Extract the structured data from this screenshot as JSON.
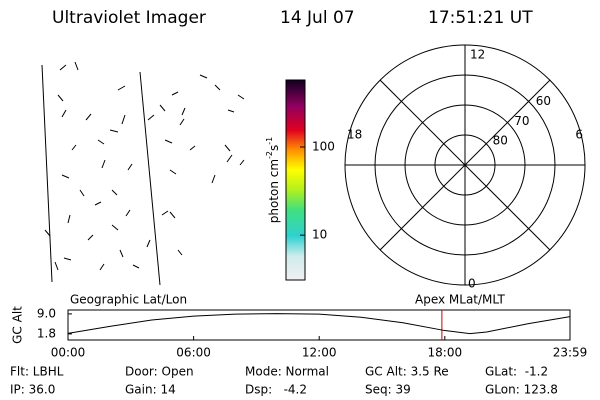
{
  "header": {
    "title": "Ultraviolet Imager",
    "date": "14 Jul 07",
    "time": "17:51:21 UT"
  },
  "colorbar": {
    "label": {
      "base": "photon cm",
      "exp1": "-2",
      "unit2": "s",
      "exp2": "-1"
    },
    "lim": [
      3.1,
      575
    ],
    "log": true,
    "ticks": [
      10,
      100
    ]
  },
  "polar": {
    "mlt_labels": [
      "12",
      "6",
      "0",
      "18"
    ],
    "lat_rings": [
      60,
      70,
      80
    ]
  },
  "chart_data": {
    "type": "line",
    "left_label": "Geographic Lat/Lon",
    "right_label": "Apex MLat/MLT",
    "ylabel": "GC Alt",
    "x": [
      0,
      2,
      4,
      6,
      8,
      10,
      12,
      14,
      16,
      18,
      19.2,
      20,
      22,
      23.98
    ],
    "values": [
      2.0,
      4.5,
      6.8,
      8.2,
      8.9,
      9.1,
      8.9,
      7.8,
      5.8,
      3.0,
      1.9,
      2.5,
      5.5,
      8.0
    ],
    "color": "#000000",
    "marker": 17.86,
    "marker_color": "#cc0000",
    "xlim": [
      0,
      23.98
    ],
    "xticks": [
      {
        "value": 0,
        "label": "00:00"
      },
      {
        "value": 6,
        "label": "06:00"
      },
      {
        "value": 12,
        "label": "12:00"
      },
      {
        "value": 18,
        "label": "18:00"
      },
      {
        "value": 23.98,
        "label": "23:59"
      }
    ],
    "ylim": [
      -0.4,
      10.4
    ],
    "yticks": [
      {
        "value": 9,
        "label": "9.0"
      },
      1.8
    ]
  },
  "footer": {
    "items": [
      [
        "Flt: LBHL",
        "Door: Open",
        "Mode: Normal",
        "GC Alt: 3.5 Re",
        "GLat:  -1.2"
      ],
      [
        "IP: 36.0",
        "Gain: 14",
        "Dsp:   -4.2",
        "Seq: 39",
        "GLon: 123.8"
      ]
    ]
  }
}
